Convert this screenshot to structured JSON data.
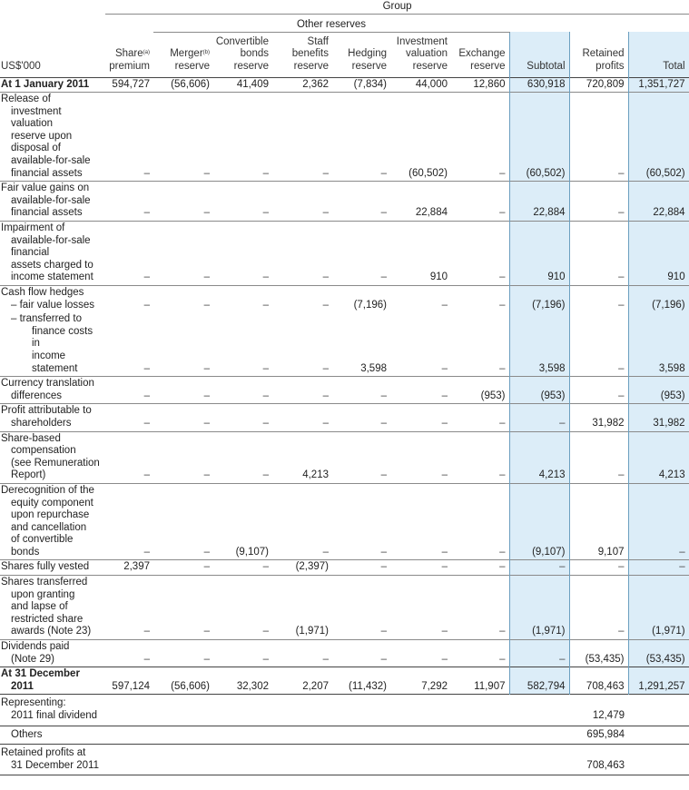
{
  "header": {
    "group": "Group",
    "other_reserves": "Other reserves",
    "unit": "US$'000",
    "cols": [
      {
        "l1": "",
        "l2": "Share",
        "sup": "(a)",
        "l3": "premium"
      },
      {
        "l1": "",
        "l2": "Merger",
        "sup": "(b)",
        "l3": "reserve"
      },
      {
        "l1": "Convertible",
        "l2": "bonds",
        "sup": "",
        "l3": "reserve"
      },
      {
        "l1": "Staff",
        "l2": "benefits",
        "sup": "",
        "l3": "reserve"
      },
      {
        "l1": "",
        "l2": "Hedging",
        "sup": "",
        "l3": "reserve"
      },
      {
        "l1": "Investment",
        "l2": "valuation",
        "sup": "",
        "l3": "reserve"
      },
      {
        "l1": "",
        "l2": "Exchange",
        "sup": "",
        "l3": "reserve"
      },
      {
        "l1": "",
        "l2": "",
        "sup": "",
        "l3": "Subtotal"
      },
      {
        "l1": "",
        "l2": "Retained",
        "sup": "",
        "l3": "profits"
      },
      {
        "l1": "",
        "l2": "",
        "sup": "",
        "l3": "Total"
      }
    ]
  },
  "rows": [
    {
      "label": [
        "At 1 January 2011"
      ],
      "bold": true,
      "v": [
        "594,727",
        "(56,606)",
        "41,409",
        "2,362",
        "(7,834)",
        "44,000",
        "12,860",
        "630,918",
        "720,809",
        "1,351,727"
      ]
    },
    {
      "label": [
        "Release of",
        "investment",
        "valuation",
        "reserve upon",
        "disposal of",
        "available-for-sale",
        "financial assets"
      ],
      "indent": "i1",
      "v": [
        "–",
        "–",
        "–",
        "–",
        "–",
        "(60,502)",
        "–",
        "(60,502)",
        "–",
        "(60,502)"
      ]
    },
    {
      "label": [
        "Fair value gains on",
        "available-for-sale",
        "financial assets"
      ],
      "indent": "i1",
      "v": [
        "–",
        "–",
        "–",
        "–",
        "–",
        "22,884",
        "–",
        "22,884",
        "–",
        "22,884"
      ]
    },
    {
      "label": [
        "Impairment of",
        "available-for-sale",
        "financial",
        "assets charged to",
        "income statement"
      ],
      "indent": "i1",
      "v": [
        "–",
        "–",
        "–",
        "–",
        "–",
        "910",
        "–",
        "910",
        "–",
        "910"
      ]
    },
    {
      "label": [
        "Cash flow hedges",
        "– fair value losses"
      ],
      "indent": "i1",
      "v": [
        "–",
        "–",
        "–",
        "–",
        "(7,196)",
        "–",
        "–",
        "(7,196)",
        "–",
        "(7,196)"
      ]
    },
    {
      "label": [
        "– transferred to",
        "finance costs in",
        "income statement"
      ],
      "indent": "i2",
      "nosep": true,
      "v": [
        "–",
        "–",
        "–",
        "–",
        "3,598",
        "–",
        "–",
        "3,598",
        "–",
        "3,598"
      ]
    },
    {
      "label": [
        "Currency translation",
        "differences"
      ],
      "indent": "i1",
      "v": [
        "–",
        "–",
        "–",
        "–",
        "–",
        "–",
        "(953)",
        "(953)",
        "–",
        "(953)"
      ]
    },
    {
      "label": [
        "Profit attributable to",
        "shareholders"
      ],
      "indent": "i1",
      "v": [
        "–",
        "–",
        "–",
        "–",
        "–",
        "–",
        "–",
        "–",
        "31,982",
        "31,982"
      ]
    },
    {
      "label": [
        "Share-based",
        "compensation",
        "(see Remuneration",
        "Report)"
      ],
      "indent": "i1",
      "v": [
        "–",
        "–",
        "–",
        "4,213",
        "–",
        "–",
        "–",
        "4,213",
        "–",
        "4,213"
      ]
    },
    {
      "label": [
        "Derecognition of the",
        "equity component",
        "upon repurchase",
        "and cancellation",
        "of convertible bonds"
      ],
      "indent": "i1",
      "v": [
        "–",
        "–",
        "(9,107)",
        "–",
        "–",
        "–",
        "–",
        "(9,107)",
        "9,107",
        "–"
      ]
    },
    {
      "label": [
        "Shares fully vested"
      ],
      "v": [
        "2,397",
        "–",
        "–",
        "(2,397)",
        "–",
        "–",
        "–",
        "–",
        "–",
        "–"
      ]
    },
    {
      "label": [
        "Shares transferred",
        "upon granting",
        "and lapse of",
        "restricted share",
        "awards (Note 23)"
      ],
      "indent": "i1",
      "v": [
        "–",
        "–",
        "–",
        "(1,971)",
        "–",
        "–",
        "–",
        "(1,971)",
        "–",
        "(1,971)"
      ]
    },
    {
      "label": [
        "Dividends paid",
        "(Note 29)"
      ],
      "indent": "i1",
      "v": [
        "–",
        "–",
        "–",
        "–",
        "–",
        "–",
        "–",
        "–",
        "(53,435)",
        "(53,435)"
      ]
    },
    {
      "label": [
        "At 31 December",
        "2011"
      ],
      "bold": true,
      "indent": "i1",
      "v": [
        "597,124",
        "(56,606)",
        "32,302",
        "2,207",
        "(11,432)",
        "7,292",
        "11,907",
        "582,794",
        "708,463",
        "1,291,257"
      ]
    }
  ],
  "footer": [
    {
      "label": [
        "Representing:",
        "2011 final dividend"
      ],
      "value": "12,479"
    },
    {
      "label": [
        "Others"
      ],
      "value": "695,984"
    },
    {
      "label": [
        "Retained profits at",
        "31 December 2011"
      ],
      "value": "708,463"
    }
  ]
}
